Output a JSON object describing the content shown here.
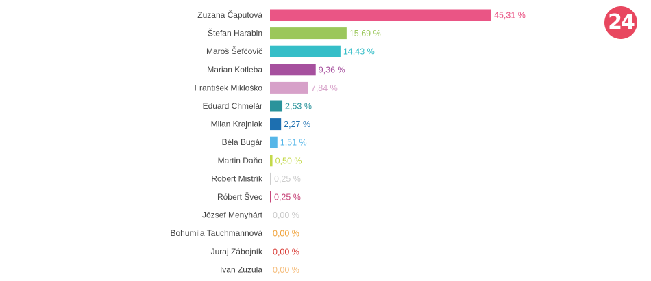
{
  "brand": {
    "logo_text": "24",
    "logo_color": "#e8475f"
  },
  "chart_data": {
    "type": "bar",
    "orientation": "horizontal",
    "title": "",
    "xlabel": "",
    "ylabel": "",
    "xlim": [
      0,
      45.31
    ],
    "grid": false,
    "legend": "none",
    "unit": "%",
    "categories": [
      "Zuzana Čaputová",
      "Štefan Harabin",
      "Maroš Šefčovič",
      "Marian Kotleba",
      "František Mikloško",
      "Eduard Chmelár",
      "Milan Krajniak",
      "Béla Bugár",
      "Martin Daňo",
      "Robert Mistrík",
      "Róbert Švec",
      "József Menyhárt",
      "Bohumila Tauchmannová",
      "Juraj Zábojník",
      "Ivan Zuzula"
    ],
    "values": [
      45.31,
      15.69,
      14.43,
      9.36,
      7.84,
      2.53,
      2.27,
      1.51,
      0.5,
      0.25,
      0.25,
      0.0,
      0.0,
      0.0,
      0.0
    ],
    "value_labels": [
      "45,31 %",
      "15,69 %",
      "14,43 %",
      "9,36 %",
      "7,84 %",
      "2,53 %",
      "2,27 %",
      "1,51 %",
      "0,50 %",
      "0,25 %",
      "0,25 %",
      "0,00 %",
      "0,00 %",
      "0,00 %",
      "0,00 %"
    ],
    "colors": [
      "#ea5585",
      "#9bc75b",
      "#35bec8",
      "#a6509e",
      "#d7a1c9",
      "#2a939b",
      "#1d6fb0",
      "#56b6e8",
      "#c4d94a",
      "#cccccc",
      "#c7467a",
      "#c8c8c8",
      "#f0a23a",
      "#d83a34",
      "#f5bc7a"
    ]
  }
}
